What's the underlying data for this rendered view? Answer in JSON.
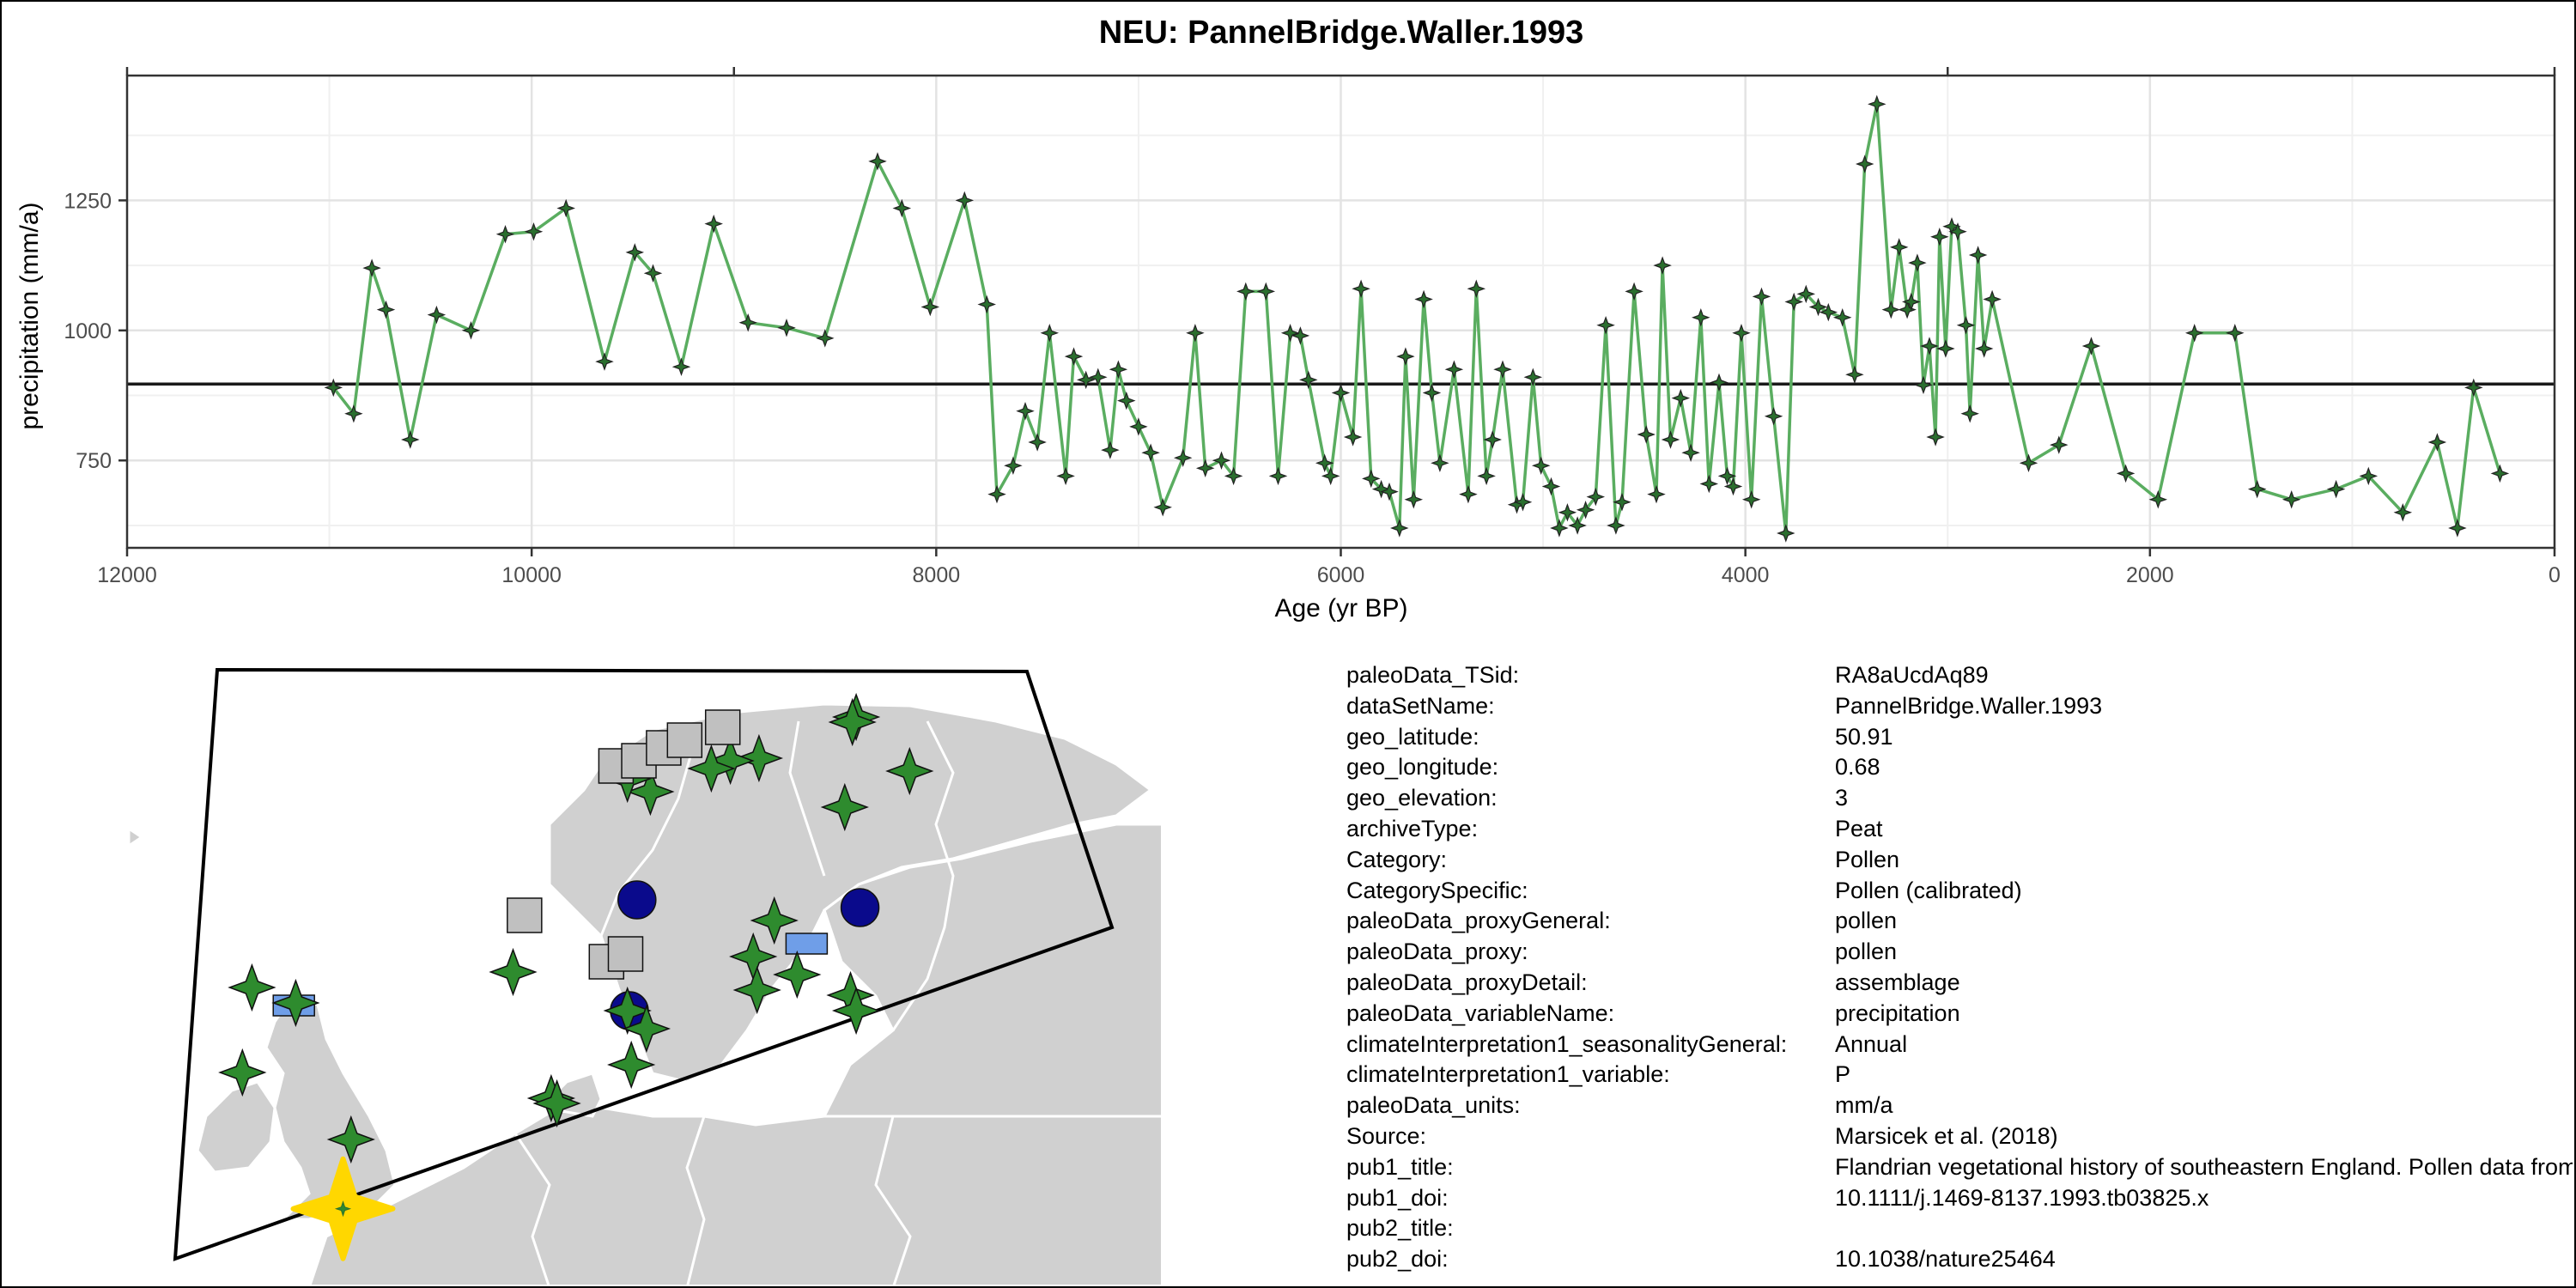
{
  "chart_data": {
    "type": "line",
    "title": "NEU: PannelBridge.Waller.1993",
    "xlabel": "Age (yr BP)",
    "ylabel": "precipitation (mm/a)",
    "xlim": [
      12000,
      0
    ],
    "ylim": [
      582,
      1490
    ],
    "x_ticks": [
      12000,
      10000,
      8000,
      6000,
      4000,
      2000,
      0
    ],
    "y_ticks": [
      750,
      1000,
      1250
    ],
    "reference_line": 897,
    "grid": true,
    "line_color": "#5aad60",
    "marker": "four-point-star",
    "series": [
      {
        "x": [
          10980,
          10880,
          10790,
          10720,
          10600,
          10470,
          10300,
          10130,
          9990,
          9830,
          9640,
          9490,
          9400,
          9260,
          9100,
          8930,
          8740,
          8550,
          8290,
          8170,
          8030,
          7860,
          7750,
          7700,
          7620,
          7560,
          7500,
          7440,
          7360,
          7320,
          7260,
          7200,
          7140,
          7100,
          7060,
          7000,
          6940,
          6880,
          6780,
          6720,
          6670,
          6590,
          6530,
          6470,
          6370,
          6310,
          6250,
          6200,
          6160,
          6080,
          6050,
          6000,
          5940,
          5900,
          5850,
          5800,
          5760,
          5710,
          5680,
          5640,
          5590,
          5550,
          5510,
          5440,
          5370,
          5330,
          5280,
          5250,
          5200,
          5130,
          5100,
          5050,
          5010,
          4960,
          4920,
          4880,
          4830,
          4790,
          4740,
          4690,
          4640,
          4610,
          4550,
          4490,
          4440,
          4410,
          4370,
          4320,
          4270,
          4220,
          4180,
          4130,
          4090,
          4060,
          4020,
          3970,
          3920,
          3860,
          3800,
          3760,
          3700,
          3640,
          3590,
          3520,
          3460,
          3410,
          3350,
          3280,
          3240,
          3200,
          3180,
          3150,
          3120,
          3090,
          3060,
          3040,
          3010,
          2980,
          2950,
          2910,
          2890,
          2850,
          2820,
          2780,
          2600,
          2450,
          2290,
          2120,
          1960,
          1780,
          1580,
          1470,
          1300,
          1080,
          920,
          750,
          580,
          480,
          400,
          270
        ],
        "y": [
          890,
          840,
          1120,
          1040,
          790,
          1030,
          1000,
          1185,
          1190,
          1235,
          940,
          1150,
          1110,
          930,
          1205,
          1015,
          1005,
          985,
          1325,
          1235,
          1045,
          1250,
          1050,
          685,
          740,
          845,
          785,
          995,
          720,
          950,
          905,
          910,
          770,
          925,
          865,
          815,
          765,
          660,
          755,
          995,
          735,
          750,
          720,
          1075,
          1075,
          720,
          995,
          990,
          905,
          745,
          720,
          880,
          795,
          1080,
          715,
          695,
          690,
          620,
          950,
          675,
          1060,
          880,
          745,
          925,
          685,
          1080,
          720,
          790,
          925,
          665,
          670,
          910,
          740,
          700,
          620,
          650,
          625,
          655,
          680,
          1010,
          625,
          670,
          1075,
          800,
          685,
          1125,
          790,
          870,
          765,
          1025,
          705,
          900,
          720,
          700,
          995,
          675,
          1065,
          835,
          610,
          1055,
          1070,
          1045,
          1035,
          1025,
          915,
          1320,
          1435,
          1040,
          1160,
          1040,
          1055,
          1130,
          895,
          970,
          795,
          1180,
          965,
          1200,
          1190,
          1010,
          840,
          1145,
          965,
          1060,
          745,
          780,
          970,
          725,
          675,
          995,
          995,
          695,
          675,
          695,
          720,
          650,
          785,
          620,
          890,
          725
        ]
      }
    ]
  },
  "map": {
    "legend_note": "",
    "colors": {
      "land": "#d0d0d0",
      "sea": "#ffffff",
      "star": "#2e8b2e",
      "target": "#ffd700",
      "circle": "#0a0a8c",
      "square": "#c0c0c0",
      "rect": "#6f9ee8"
    },
    "markers": [
      {
        "shape": "star",
        "lon": 27.6,
        "lat": 70.0
      },
      {
        "shape": "star",
        "lon": 27.4,
        "lat": 69.8
      },
      {
        "shape": "star",
        "lon": 30.4,
        "lat": 67.9
      },
      {
        "shape": "star",
        "lon": 27.0,
        "lat": 66.5
      },
      {
        "shape": "star",
        "lon": 22.5,
        "lat": 68.4
      },
      {
        "shape": "star",
        "lon": 21.0,
        "lat": 68.3
      },
      {
        "shape": "star",
        "lon": 20.0,
        "lat": 68.0
      },
      {
        "shape": "star",
        "lon": 16.8,
        "lat": 67.1
      },
      {
        "shape": "star",
        "lon": 15.6,
        "lat": 67.6
      },
      {
        "shape": "square",
        "lon": 15.0,
        "lat": 68.1
      },
      {
        "shape": "square",
        "lon": 16.2,
        "lat": 68.3
      },
      {
        "shape": "square",
        "lon": 17.5,
        "lat": 68.8
      },
      {
        "shape": "square",
        "lon": 18.6,
        "lat": 69.1
      },
      {
        "shape": "square",
        "lon": 20.6,
        "lat": 69.6
      },
      {
        "shape": "square",
        "lon": 10.2,
        "lat": 62.3
      },
      {
        "shape": "circle",
        "lon": 16.1,
        "lat": 62.9
      },
      {
        "shape": "circle",
        "lon": 27.8,
        "lat": 62.6
      },
      {
        "shape": "star",
        "lon": 23.3,
        "lat": 62.1
      },
      {
        "shape": "rect",
        "lon": 25.0,
        "lat": 61.2
      },
      {
        "shape": "star",
        "lon": 22.2,
        "lat": 60.7
      },
      {
        "shape": "star",
        "lon": 24.5,
        "lat": 60.0
      },
      {
        "shape": "star",
        "lon": 22.4,
        "lat": 59.4
      },
      {
        "shape": "star",
        "lon": 27.3,
        "lat": 59.2
      },
      {
        "shape": "star",
        "lon": 27.6,
        "lat": 58.6
      },
      {
        "shape": "square",
        "lon": 14.5,
        "lat": 60.5
      },
      {
        "shape": "square",
        "lon": 15.5,
        "lat": 60.8
      },
      {
        "shape": "circle",
        "lon": 15.7,
        "lat": 58.6
      },
      {
        "shape": "star",
        "lon": 15.6,
        "lat": 58.6
      },
      {
        "shape": "star",
        "lon": 16.6,
        "lat": 57.9
      },
      {
        "shape": "star",
        "lon": 9.6,
        "lat": 60.1
      },
      {
        "shape": "star",
        "lon": 15.8,
        "lat": 56.5
      },
      {
        "shape": "star",
        "lon": -4.1,
        "lat": 59.5
      },
      {
        "shape": "rect",
        "lon": -1.9,
        "lat": 58.8
      },
      {
        "shape": "star",
        "lon": -1.8,
        "lat": 58.9
      },
      {
        "shape": "star",
        "lon": -4.6,
        "lat": 56.2
      },
      {
        "shape": "star",
        "lon": 11.6,
        "lat": 55.2
      },
      {
        "shape": "star",
        "lon": 11.9,
        "lat": 55.0
      },
      {
        "shape": "star",
        "lon": 1.1,
        "lat": 53.6
      },
      {
        "shape": "target",
        "lon": 0.68,
        "lat": 50.91
      }
    ]
  },
  "metadata": [
    {
      "key": "paleoData_TSid:",
      "value": "RA8aUcdAq89"
    },
    {
      "key": "dataSetName:",
      "value": "PannelBridge.Waller.1993"
    },
    {
      "key": "geo_latitude:",
      "value": "50.91"
    },
    {
      "key": "geo_longitude:",
      "value": "0.68"
    },
    {
      "key": "geo_elevation:",
      "value": "3"
    },
    {
      "key": "archiveType:",
      "value": "Peat"
    },
    {
      "key": "Category:",
      "value": "Pollen"
    },
    {
      "key": "CategorySpecific:",
      "value": "Pollen (calibrated)"
    },
    {
      "key": "paleoData_proxyGeneral:",
      "value": "pollen"
    },
    {
      "key": "paleoData_proxy:",
      "value": "pollen"
    },
    {
      "key": "paleoData_proxyDetail:",
      "value": "assemblage"
    },
    {
      "key": "paleoData_variableName:",
      "value": "precipitation"
    },
    {
      "key": "climateInterpretation1_seasonalityGeneral:",
      "value": "Annual"
    },
    {
      "key": "climateInterpretation1_variable:",
      "value": "P"
    },
    {
      "key": "paleoData_units:",
      "value": "mm/a"
    },
    {
      "key": "Source:",
      "value": "Marsicek et al. (2018)"
    },
    {
      "key": "pub1_title:",
      "value": "Flandrian vegetational history of southeastern England. Pollen data from Pannel Bridge, East Sussex"
    },
    {
      "key": "pub1_doi:",
      "value": "10.1111/j.1469-8137.1993.tb03825.x"
    },
    {
      "key": "pub2_title:",
      "value": ""
    },
    {
      "key": "pub2_doi:",
      "value": "10.1038/nature25464"
    }
  ]
}
